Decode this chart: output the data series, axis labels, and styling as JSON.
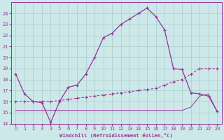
{
  "xlabel": "Windchill (Refroidissement éolien,°C)",
  "background_color": "#cce8e8",
  "grid_color": "#aacccc",
  "line_color": "#993399",
  "xlim": [
    -0.5,
    23.5
  ],
  "ylim": [
    14,
    25
  ],
  "yticks": [
    14,
    15,
    16,
    17,
    18,
    19,
    20,
    21,
    22,
    23,
    24
  ],
  "xticks": [
    0,
    1,
    2,
    3,
    4,
    5,
    6,
    7,
    8,
    9,
    10,
    11,
    12,
    13,
    14,
    15,
    16,
    17,
    18,
    19,
    20,
    21,
    22,
    23
  ],
  "s1_x": [
    0,
    1,
    2,
    3,
    4,
    5,
    6,
    7,
    8,
    9,
    10,
    11,
    12,
    13,
    14,
    15,
    16,
    17,
    18,
    19,
    20,
    21,
    22,
    23
  ],
  "s1_y": [
    18.5,
    16.7,
    16.0,
    15.9,
    14.1,
    16.0,
    17.3,
    17.5,
    18.5,
    20.0,
    21.8,
    22.2,
    23.0,
    23.5,
    24.0,
    24.5,
    23.7,
    22.5,
    19.0,
    18.9,
    16.8,
    16.7,
    16.5,
    15.1
  ],
  "s2_x": [
    0,
    1,
    2,
    3,
    4,
    5,
    6,
    7,
    8,
    9,
    10,
    11,
    12,
    13,
    14,
    15,
    16,
    17,
    18,
    19,
    20,
    21,
    22,
    23
  ],
  "s2_y": [
    16.0,
    16.0,
    16.0,
    16.0,
    16.0,
    16.1,
    16.2,
    16.3,
    16.4,
    16.5,
    16.6,
    16.7,
    16.8,
    16.9,
    17.0,
    17.1,
    17.2,
    17.5,
    17.8,
    18.0,
    18.5,
    19.0,
    19.0,
    19.0
  ],
  "s3_x": [
    0,
    1,
    2,
    3,
    4,
    5,
    6,
    7,
    8,
    9,
    10,
    11,
    12,
    13,
    14,
    15,
    16,
    17,
    18,
    19,
    20,
    21,
    22,
    23
  ],
  "s3_y": [
    15.2,
    15.2,
    15.2,
    15.2,
    15.2,
    15.2,
    15.2,
    15.2,
    15.2,
    15.2,
    15.2,
    15.2,
    15.2,
    15.2,
    15.2,
    15.2,
    15.2,
    15.2,
    15.2,
    15.2,
    15.5,
    16.5,
    16.7,
    15.1
  ]
}
